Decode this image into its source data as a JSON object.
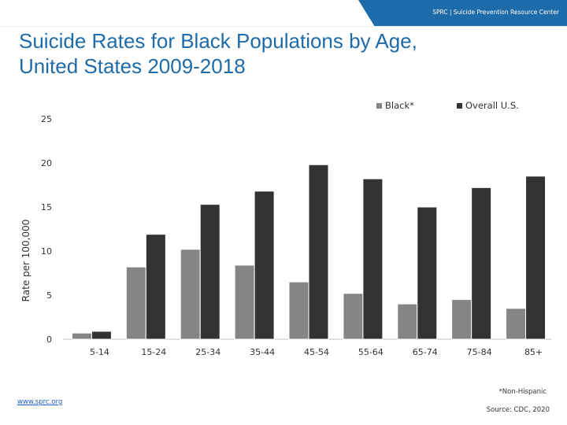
{
  "header": {
    "org_label": "SPRC | Suicide Prevention Resource Center"
  },
  "slide": {
    "title_line1": "Suicide Rates for Black Populations by Age,",
    "title_line2": "United States 2009-2018"
  },
  "footer": {
    "footnote": "*Non-Hispanic",
    "source": "Source: CDC, 2020",
    "link": "www.sprc.org"
  },
  "colors": {
    "brand_blue": "#1e6ba9",
    "black_series": "#858585",
    "overall_series": "#333333"
  },
  "chart_data": {
    "type": "bar",
    "title": "",
    "xlabel": "",
    "ylabel": "Rate per 100,000",
    "ylim": [
      0,
      25
    ],
    "yticks": [
      0,
      5,
      10,
      15,
      20,
      25
    ],
    "grid": false,
    "legend_position": "top-right",
    "categories": [
      "5-14",
      "15-24",
      "25-34",
      "35-44",
      "45-54",
      "55-64",
      "65-74",
      "75-84",
      "85+"
    ],
    "series": [
      {
        "name": "Black*",
        "color": "#858585",
        "values": [
          0.7,
          8.2,
          10.2,
          8.4,
          6.5,
          5.2,
          4.0,
          4.5,
          3.5
        ]
      },
      {
        "name": "Overall U.S.",
        "color": "#333333",
        "values": [
          0.9,
          11.9,
          15.3,
          16.8,
          19.8,
          18.2,
          15.0,
          17.2,
          18.5
        ]
      }
    ]
  }
}
